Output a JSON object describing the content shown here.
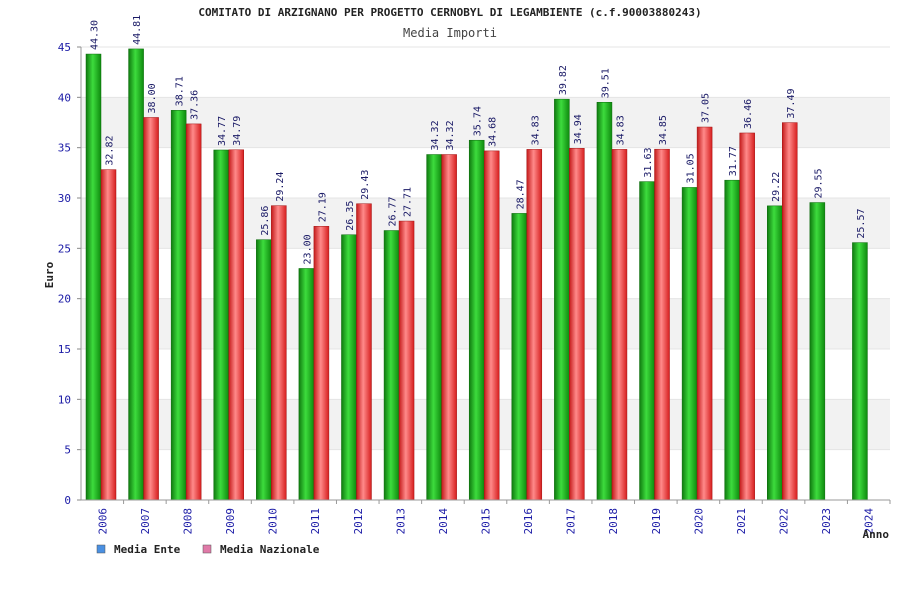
{
  "chart_data": {
    "type": "bar",
    "title": "COMITATO DI ARZIGNANO PER PROGETTO CERNOBYL DI LEGAMBIENTE (c.f.90003880243)",
    "subtitle": "Media Importi",
    "xlabel": "Anno",
    "ylabel": "Euro",
    "ylim": [
      0,
      45
    ],
    "yticks": [
      0,
      5,
      10,
      15,
      20,
      25,
      30,
      35,
      40,
      45
    ],
    "categories": [
      "2006",
      "2007",
      "2008",
      "2009",
      "2010",
      "2011",
      "2012",
      "2013",
      "2014",
      "2015",
      "2016",
      "2017",
      "2018",
      "2019",
      "2020",
      "2021",
      "2022",
      "2023",
      "2024"
    ],
    "series": [
      {
        "name": "Media Ente",
        "color": "#22b022",
        "values": [
          44.3,
          44.81,
          38.71,
          34.77,
          25.86,
          23.0,
          26.35,
          26.77,
          34.32,
          35.74,
          28.47,
          39.82,
          39.51,
          31.63,
          31.05,
          31.77,
          29.22,
          29.55,
          25.57
        ],
        "labels": [
          "44.30",
          "44.81",
          "38.71",
          "34.77",
          "25.86",
          "23.00",
          "26.35",
          "26.77",
          "34.32",
          "35.74",
          "28.47",
          "39.82",
          "39.51",
          "31.63",
          "31.05",
          "31.77",
          "29.22",
          "29.55",
          "25.57"
        ]
      },
      {
        "name": "Media Nazionale",
        "color": "#e02828",
        "values": [
          32.82,
          38.0,
          37.36,
          34.79,
          29.24,
          27.19,
          29.43,
          27.71,
          34.32,
          34.68,
          34.83,
          34.94,
          34.83,
          34.85,
          37.05,
          36.46,
          37.49,
          null,
          null
        ],
        "labels": [
          "32.82",
          "38.00",
          "37.36",
          "34.79",
          "29.24",
          "27.19",
          "29.43",
          "27.71",
          "34.32",
          "34.68",
          "34.83",
          "34.94",
          "34.83",
          "34.85",
          "37.05",
          "36.46",
          "37.49",
          null,
          null
        ]
      }
    ],
    "legend": {
      "placement": "bottom-left",
      "items": [
        {
          "label": "Media Ente",
          "color": "#4a90e2"
        },
        {
          "label": "Media Nazionale",
          "color": "#e07aa8"
        }
      ]
    }
  }
}
